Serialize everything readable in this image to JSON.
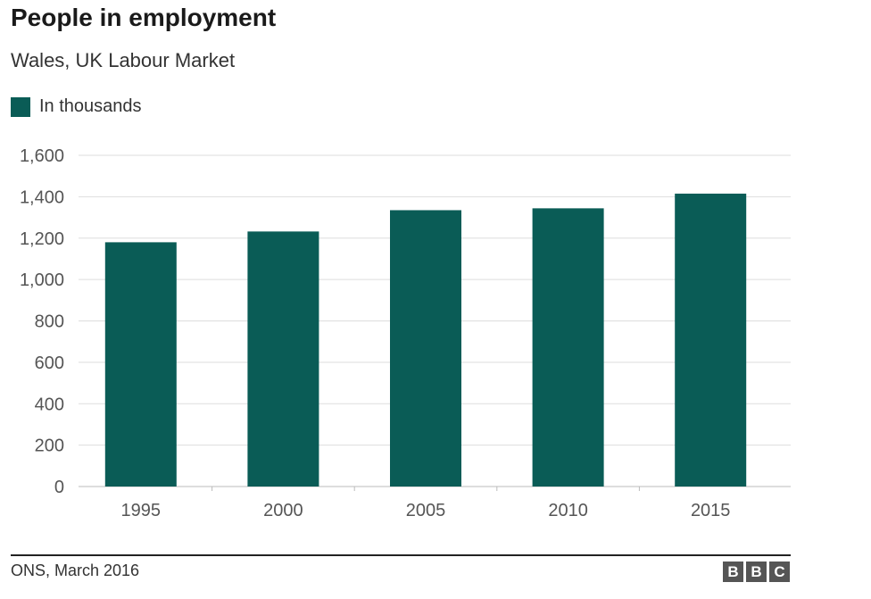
{
  "title": "People in employment",
  "subtitle": "Wales, UK Labour Market",
  "legend_label": "In thousands",
  "source": "ONS, March 2016",
  "logo": [
    "B",
    "B",
    "C"
  ],
  "colors": {
    "bar": "#0a5c56",
    "grid": "#dddddd",
    "axis": "#bbbbbb",
    "logo": "#555555"
  },
  "chart_data": {
    "type": "bar",
    "title": "People in employment",
    "subtitle": "Wales, UK Labour Market",
    "categories": [
      "1995",
      "2000",
      "2005",
      "2010",
      "2015"
    ],
    "series": [
      {
        "name": "In thousands",
        "values": [
          1180,
          1232,
          1335,
          1344,
          1415
        ]
      }
    ],
    "ylim": [
      0,
      1600
    ],
    "yticks": [
      0,
      200,
      400,
      600,
      800,
      1000,
      1200,
      1400,
      1600
    ],
    "ytick_labels": [
      "0",
      "200",
      "400",
      "600",
      "800",
      "1,000",
      "1,200",
      "1,400",
      "1,600"
    ],
    "xlabel": "",
    "ylabel": "",
    "grid": true,
    "legend_position": "top-left"
  }
}
